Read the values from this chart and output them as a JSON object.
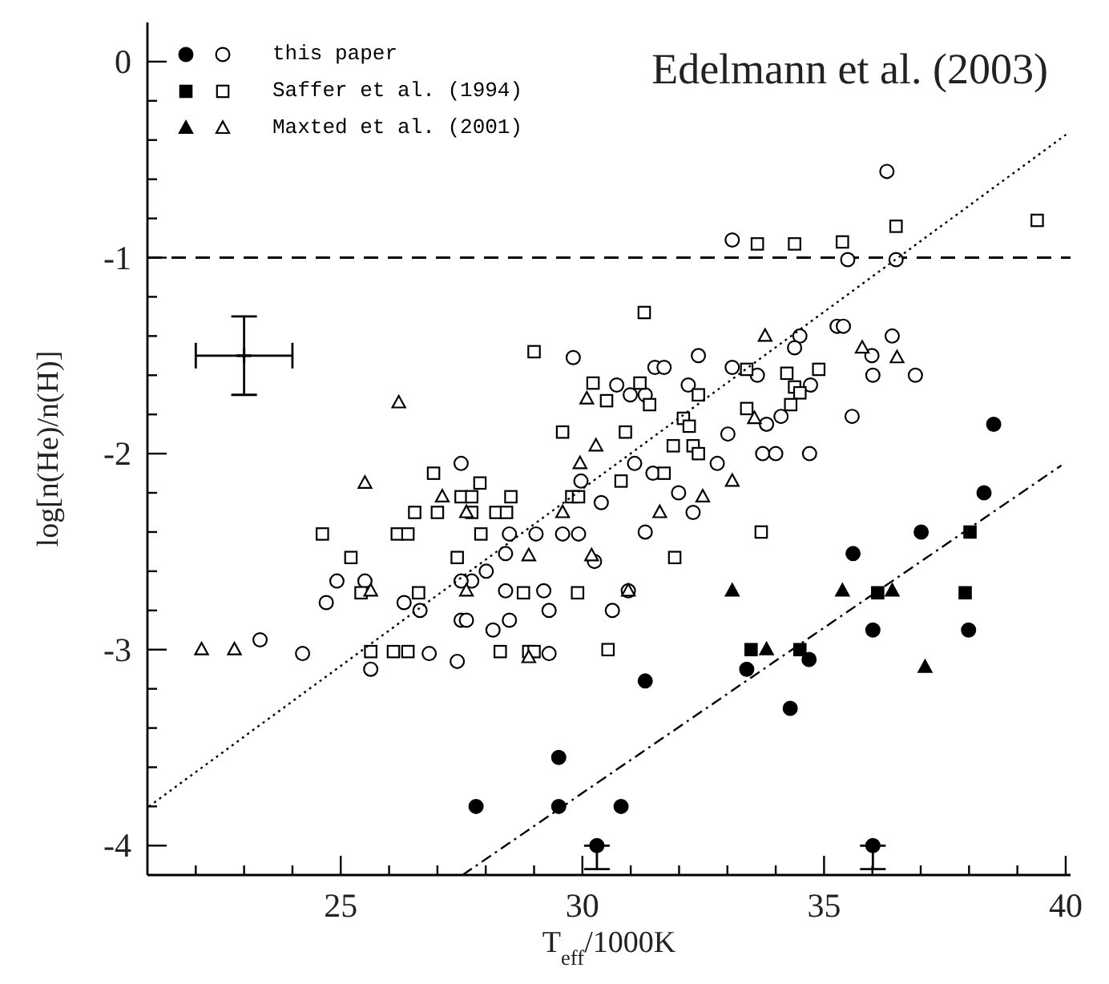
{
  "chart_data": {
    "type": "scatter",
    "xlabel": "T$_{eff}$/1000K",
    "ylabel": "log[n(He)/n(H)]",
    "annotations": [
      "Edelmann et al. (2003)"
    ],
    "xlim": [
      21,
      40.1
    ],
    "xticks": [
      {
        "value": 22,
        "label": null
      },
      {
        "value": 23,
        "label": null
      },
      {
        "value": 24,
        "label": null
      },
      25,
      {
        "value": 26,
        "label": null
      },
      {
        "value": 27,
        "label": null
      },
      {
        "value": 28,
        "label": null
      },
      {
        "value": 29,
        "label": null
      },
      30,
      {
        "value": 31,
        "label": null
      },
      {
        "value": 32,
        "label": null
      },
      {
        "value": 33,
        "label": null
      },
      {
        "value": 34,
        "label": null
      },
      35,
      {
        "value": 36,
        "label": null
      },
      {
        "value": 37,
        "label": null
      },
      {
        "value": 38,
        "label": null
      },
      {
        "value": 39,
        "label": null
      },
      40
    ],
    "ylim": [
      -4.15,
      0.2
    ],
    "yticks": [
      -4,
      {
        "value": -3.8,
        "label": null
      },
      {
        "value": -3.6,
        "label": null
      },
      {
        "value": -3.4,
        "label": null
      },
      {
        "value": -3.2,
        "label": null
      },
      -3,
      {
        "value": -2.8,
        "label": null
      },
      {
        "value": -2.6,
        "label": null
      },
      {
        "value": -2.4,
        "label": null
      },
      {
        "value": -2.2,
        "label": null
      },
      -2,
      {
        "value": -1.8,
        "label": null
      },
      {
        "value": -1.6,
        "label": null
      },
      {
        "value": -1.4,
        "label": null
      },
      {
        "value": -1.2,
        "label": null
      },
      -1,
      {
        "value": -0.8,
        "label": null
      },
      {
        "value": -0.6,
        "label": null
      },
      {
        "value": -0.4,
        "label": null
      },
      {
        "value": -0.2,
        "label": null
      },
      0
    ],
    "grid": false,
    "legend": "top left",
    "ref_lines": [
      {
        "axis": "y",
        "value": -1,
        "color": "#000000",
        "line_style": "dashed"
      }
    ],
    "series": [
      {
        "type": "scatter",
        "marker": "circle",
        "color": "#000000",
        "x": [
          38.51,
          38.31,
          37.01,
          35.6,
          36.01,
          37.99,
          33.4,
          34.69,
          31.3,
          34.3,
          30.8,
          30.3,
          36.01,
          29.51,
          27.8,
          29.51
        ],
        "values": [
          -1.85,
          -2.2,
          -2.4,
          -2.51,
          -2.9,
          -2.9,
          -3.1,
          -3.05,
          -3.16,
          -3.3,
          -3.8,
          -4,
          -4,
          -3.55,
          -3.8,
          -3.8
        ],
        "errors": [
          null,
          null,
          null,
          null,
          null,
          null,
          null,
          null,
          null,
          null,
          null,
          [
            -4.12,
            -4
          ],
          [
            -4.12,
            -4
          ],
          null,
          null,
          null
        ]
      },
      {
        "type": "scatter",
        "name": "this paper",
        "marker": "circle",
        "color": "#000000",
        "x": [
          27.49,
          29.81,
          29.97,
          36.3,
          33.1,
          35.49,
          36.49,
          34.5,
          34.39,
          35.27,
          35.4,
          36.41,
          35.99,
          36.01,
          36.89,
          35.58,
          32.4,
          31.5,
          31.69,
          33.1,
          33.62,
          30.71,
          30.99,
          31.3,
          32.19,
          34.11,
          33.81,
          34.72,
          33.01,
          33.73,
          34,
          34.7,
          31.08,
          32.79,
          31.46,
          30.39,
          31.99,
          32.29,
          31.3,
          30.25,
          30.95,
          30.62,
          28.49,
          29.04,
          29.59,
          29.92,
          28.41,
          28.01,
          27.71,
          27.49,
          24.92,
          24.7,
          25.5,
          26.31,
          26.64,
          28.41,
          29.2,
          29.31,
          27.49,
          27.6,
          28.49,
          28.15,
          23.33,
          24.21,
          25.62,
          26.83,
          27.41,
          29.31
        ],
        "values": [
          -2.05,
          -1.51,
          -2.14,
          -0.56,
          -0.91,
          -1.01,
          -1.01,
          -1.4,
          -1.46,
          -1.35,
          -1.35,
          -1.4,
          -1.5,
          -1.6,
          -1.6,
          -1.81,
          -1.5,
          -1.56,
          -1.56,
          -1.56,
          -1.6,
          -1.65,
          -1.7,
          -1.7,
          -1.65,
          -1.81,
          -1.85,
          -1.65,
          -1.9,
          -2,
          -2,
          -2,
          -2.05,
          -2.05,
          -2.1,
          -2.25,
          -2.2,
          -2.3,
          -2.4,
          -2.55,
          -2.7,
          -2.8,
          -2.41,
          -2.41,
          -2.41,
          -2.41,
          -2.51,
          -2.6,
          -2.65,
          -2.65,
          -2.65,
          -2.76,
          -2.65,
          -2.76,
          -2.8,
          -2.7,
          -2.7,
          -2.8,
          -2.85,
          -2.85,
          -2.85,
          -2.9,
          -2.95,
          -3.02,
          -3.1,
          -3.02,
          -3.06,
          -3.02
        ]
      },
      {
        "type": "scatter",
        "marker": "square",
        "color": "#000000",
        "x": [
          33.49,
          34.5,
          36.11,
          38.02,
          37.92
        ],
        "values": [
          -3,
          -3,
          -2.71,
          -2.4,
          -2.71
        ]
      },
      {
        "type": "scatter",
        "name": "Saffer et al. (1994)",
        "marker": "square",
        "color": "#000000",
        "x": [
          29,
          30.22,
          30.5,
          29.59,
          26.92,
          27.88,
          33.62,
          34.39,
          35.38,
          36.49,
          39.41,
          31.28,
          33.4,
          34.23,
          34.89,
          34.39,
          34.5,
          34.31,
          33.4,
          31.19,
          31.39,
          32.4,
          30.89,
          32.09,
          32.21,
          31.88,
          32.29,
          32.4,
          31.69,
          30.8,
          33.7,
          31.91,
          30.53,
          27.49,
          27.71,
          28.52,
          29.78,
          29.92,
          26.53,
          27,
          27.71,
          28.21,
          28.43,
          24.62,
          26.17,
          26.39,
          27.9,
          25.21,
          27.41,
          25.42,
          26.61,
          28.78,
          29.9,
          25.62,
          26.09,
          26.39,
          28.3,
          28.89,
          29
        ],
        "values": [
          -1.48,
          -1.64,
          -1.73,
          -1.89,
          -2.1,
          -2.15,
          -0.93,
          -0.93,
          -0.92,
          -0.84,
          -0.81,
          -1.28,
          -1.57,
          -1.59,
          -1.57,
          -1.66,
          -1.69,
          -1.75,
          -1.77,
          -1.64,
          -1.75,
          -1.7,
          -1.89,
          -1.82,
          -1.86,
          -1.96,
          -1.96,
          -2,
          -2.1,
          -2.14,
          -2.4,
          -2.53,
          -3,
          -2.22,
          -2.22,
          -2.22,
          -2.22,
          -2.22,
          -2.3,
          -2.3,
          -2.3,
          -2.3,
          -2.3,
          -2.41,
          -2.41,
          -2.41,
          -2.41,
          -2.53,
          -2.53,
          -2.71,
          -2.71,
          -2.71,
          -2.71,
          -3.01,
          -3.01,
          -3.01,
          -3.01,
          -3.01,
          -3.01
        ]
      },
      {
        "type": "scatter",
        "marker": "triangle",
        "color": "#000000",
        "x": [
          33.1,
          33.81,
          35.38,
          36.41,
          37.09
        ],
        "values": [
          -2.7,
          -3,
          -2.7,
          -2.7,
          -3.09
        ]
      },
      {
        "type": "scatter",
        "name": "Maxted et al. (2001)",
        "marker": "triangle",
        "color": "#000000",
        "x": [
          26.2,
          30.09,
          30.28,
          29.95,
          25.5,
          33.78,
          35.79,
          36.51,
          33.56,
          33.1,
          32.49,
          31.6,
          30.95,
          27.1,
          27.6,
          29.59,
          28.89,
          30.19,
          25.62,
          27.6,
          22.12,
          22.8,
          28.89
        ],
        "values": [
          -1.74,
          -1.72,
          -1.96,
          -2.05,
          -2.15,
          -1.4,
          -1.46,
          -1.51,
          -1.82,
          -2.14,
          -2.22,
          -2.3,
          -2.7,
          -2.22,
          -2.3,
          -2.3,
          -2.52,
          -2.52,
          -2.7,
          -2.7,
          -3,
          -3,
          -3.04
        ]
      },
      {
        "type": "scatter",
        "marker": "cross",
        "color": "#000000",
        "x": [
          23
        ],
        "values": [
          -1.5
        ],
        "errors": [
          0.2
        ],
        "xerrors": [
          1
        ]
      },
      {
        "type": "line",
        "marker": "none",
        "line_style": "dotted",
        "color": "#000000",
        "x": [
          21.03,
          40.02
        ],
        "values": [
          -3.8,
          -0.37
        ]
      },
      {
        "type": "line",
        "marker": "none",
        "line_style": "dashed",
        "color": "#000000",
        "x": [
          27.52,
          39.91
        ],
        "values": [
          -4.15,
          -2.06
        ]
      }
    ]
  }
}
